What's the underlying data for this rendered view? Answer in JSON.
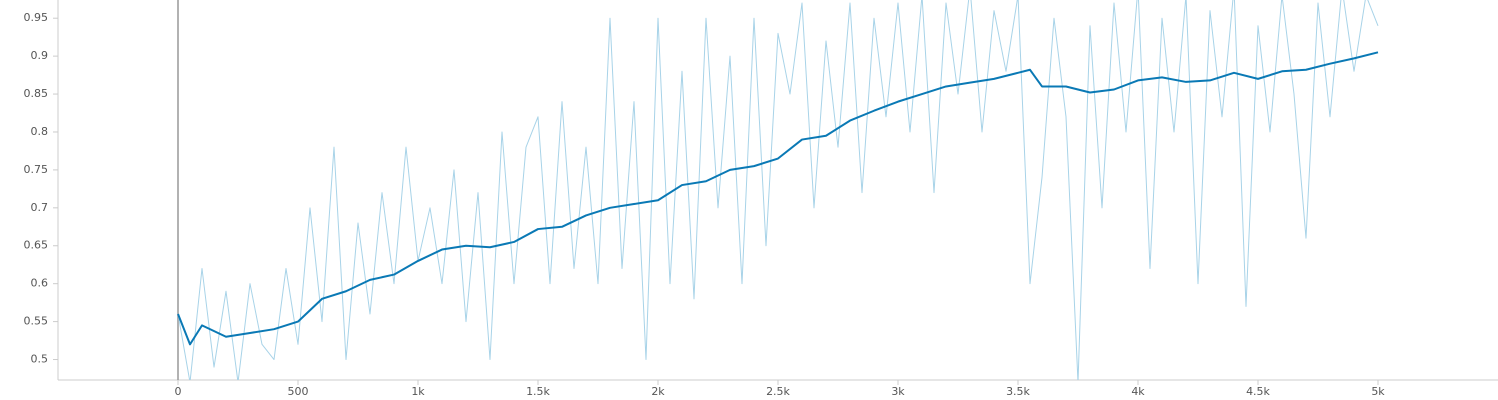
{
  "chart_data": {
    "type": "line",
    "xlim": [
      -500,
      5500
    ],
    "xticks": [
      0,
      {
        "value": 500,
        "label": "500"
      },
      {
        "value": 1000,
        "label": "1k"
      },
      {
        "value": 1500,
        "label": "1.5k"
      },
      {
        "value": 2000,
        "label": "2k"
      },
      {
        "value": 2500,
        "label": "2.5k"
      },
      {
        "value": 3000,
        "label": "3k"
      },
      {
        "value": 3500,
        "label": "3.5k"
      },
      {
        "value": 4000,
        "label": "4k"
      },
      {
        "value": 4500,
        "label": "4.5k"
      },
      {
        "value": 5000,
        "label": "5k"
      }
    ],
    "ylim": [
      0.473,
      0.974
    ],
    "yticks": [
      0.5,
      0.55,
      0.6,
      0.65,
      0.7,
      0.75,
      0.8,
      0.85,
      0.9,
      0.95
    ],
    "grid": false,
    "series": [
      {
        "color": "#a8d3e8",
        "x": [
          0,
          50,
          100,
          150,
          200,
          250,
          300,
          350,
          400,
          450,
          500,
          550,
          600,
          650,
          700,
          750,
          800,
          850,
          900,
          950,
          1000,
          1050,
          1100,
          1150,
          1200,
          1250,
          1300,
          1350,
          1400,
          1450,
          1500,
          1550,
          1600,
          1650,
          1700,
          1750,
          1800,
          1850,
          1900,
          1950,
          2000,
          2050,
          2100,
          2150,
          2200,
          2250,
          2300,
          2350,
          2400,
          2450,
          2500,
          2550,
          2600,
          2650,
          2700,
          2750,
          2800,
          2850,
          2900,
          2950,
          3000,
          3050,
          3100,
          3150,
          3200,
          3250,
          3300,
          3350,
          3400,
          3450,
          3500,
          3550,
          3600,
          3650,
          3700,
          3750,
          3800,
          3850,
          3900,
          3950,
          4000,
          4050,
          4100,
          4150,
          4200,
          4250,
          4300,
          4350,
          4400,
          4450,
          4500,
          4550,
          4600,
          4650,
          4700,
          4750,
          4800,
          4850,
          4900,
          4950,
          5000
        ],
        "values": [
          0.56,
          0.47,
          0.62,
          0.49,
          0.59,
          0.47,
          0.6,
          0.52,
          0.5,
          0.62,
          0.52,
          0.7,
          0.55,
          0.78,
          0.5,
          0.68,
          0.56,
          0.72,
          0.6,
          0.78,
          0.63,
          0.7,
          0.6,
          0.75,
          0.55,
          0.72,
          0.5,
          0.8,
          0.6,
          0.78,
          0.82,
          0.6,
          0.84,
          0.62,
          0.78,
          0.6,
          0.95,
          0.62,
          0.84,
          0.5,
          0.95,
          0.6,
          0.88,
          0.58,
          0.95,
          0.7,
          0.9,
          0.6,
          0.95,
          0.65,
          0.93,
          0.85,
          0.97,
          0.7,
          0.92,
          0.78,
          0.97,
          0.72,
          0.95,
          0.82,
          0.97,
          0.8,
          0.98,
          0.72,
          0.97,
          0.85,
          0.99,
          0.8,
          0.96,
          0.88,
          0.98,
          0.6,
          0.74,
          0.95,
          0.82,
          0.47,
          0.94,
          0.7,
          0.97,
          0.8,
          0.99,
          0.62,
          0.95,
          0.8,
          0.98,
          0.6,
          0.96,
          0.82,
          0.99,
          0.57,
          0.94,
          0.8,
          0.98,
          0.85,
          0.66,
          0.97,
          0.82,
          0.99,
          0.88,
          0.98,
          0.94
        ]
      },
      {
        "color": "#0a79b5",
        "x": [
          0,
          50,
          100,
          200,
          300,
          400,
          500,
          600,
          700,
          800,
          900,
          1000,
          1100,
          1200,
          1300,
          1400,
          1500,
          1600,
          1700,
          1800,
          1900,
          2000,
          2100,
          2200,
          2300,
          2400,
          2500,
          2600,
          2700,
          2800,
          2900,
          3000,
          3100,
          3200,
          3300,
          3400,
          3500,
          3550,
          3600,
          3700,
          3800,
          3900,
          4000,
          4100,
          4200,
          4300,
          4400,
          4500,
          4600,
          4700,
          4800,
          4900,
          5000
        ],
        "values": [
          0.56,
          0.52,
          0.545,
          0.53,
          0.535,
          0.54,
          0.55,
          0.58,
          0.59,
          0.605,
          0.612,
          0.63,
          0.645,
          0.65,
          0.648,
          0.655,
          0.672,
          0.675,
          0.69,
          0.7,
          0.705,
          0.71,
          0.73,
          0.735,
          0.75,
          0.755,
          0.765,
          0.79,
          0.795,
          0.815,
          0.828,
          0.84,
          0.85,
          0.86,
          0.865,
          0.87,
          0.878,
          0.882,
          0.86,
          0.86,
          0.852,
          0.856,
          0.868,
          0.872,
          0.866,
          0.868,
          0.878,
          0.87,
          0.88,
          0.882,
          0.89,
          0.897,
          0.905
        ]
      }
    ]
  }
}
